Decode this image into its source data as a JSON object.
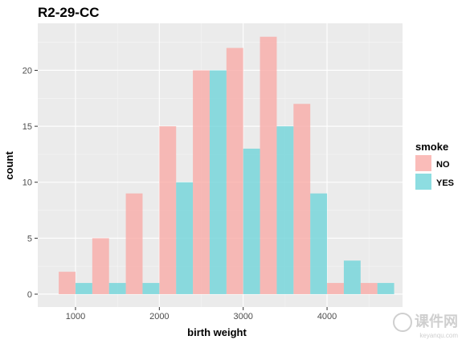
{
  "chart_data": {
    "type": "bar",
    "title": "R2-29-CC",
    "xlabel": "birth weight",
    "ylabel": "count",
    "xlim": [
      550,
      4900
    ],
    "ylim": [
      -1.15,
      24.2
    ],
    "x_ticks": [
      1000,
      2000,
      3000,
      4000
    ],
    "y_ticks": [
      0,
      5,
      10,
      15,
      20
    ],
    "bin_width": 200,
    "grid": true,
    "legend": {
      "title": "smoke",
      "position": "right",
      "entries": [
        "NO",
        "YES"
      ]
    },
    "series": [
      {
        "name": "NO",
        "color": "#f8a9a5",
        "bin_centers": [
          1000,
          1400,
          1800,
          2200,
          2600,
          3000,
          3400,
          3800,
          4200,
          4600
        ],
        "values": [
          2,
          5,
          9,
          15,
          20,
          22,
          23,
          17,
          1,
          1
        ]
      },
      {
        "name": "YES",
        "color": "#6dd4d8",
        "bin_centers": [
          1000,
          1400,
          1800,
          2200,
          2600,
          3000,
          3400,
          3800,
          4200,
          4600
        ],
        "values": [
          1,
          1,
          1,
          10,
          20,
          13,
          15,
          9,
          3,
          1
        ]
      }
    ]
  },
  "watermark": {
    "brand": "课件网",
    "sub": "keyanqu.com"
  }
}
